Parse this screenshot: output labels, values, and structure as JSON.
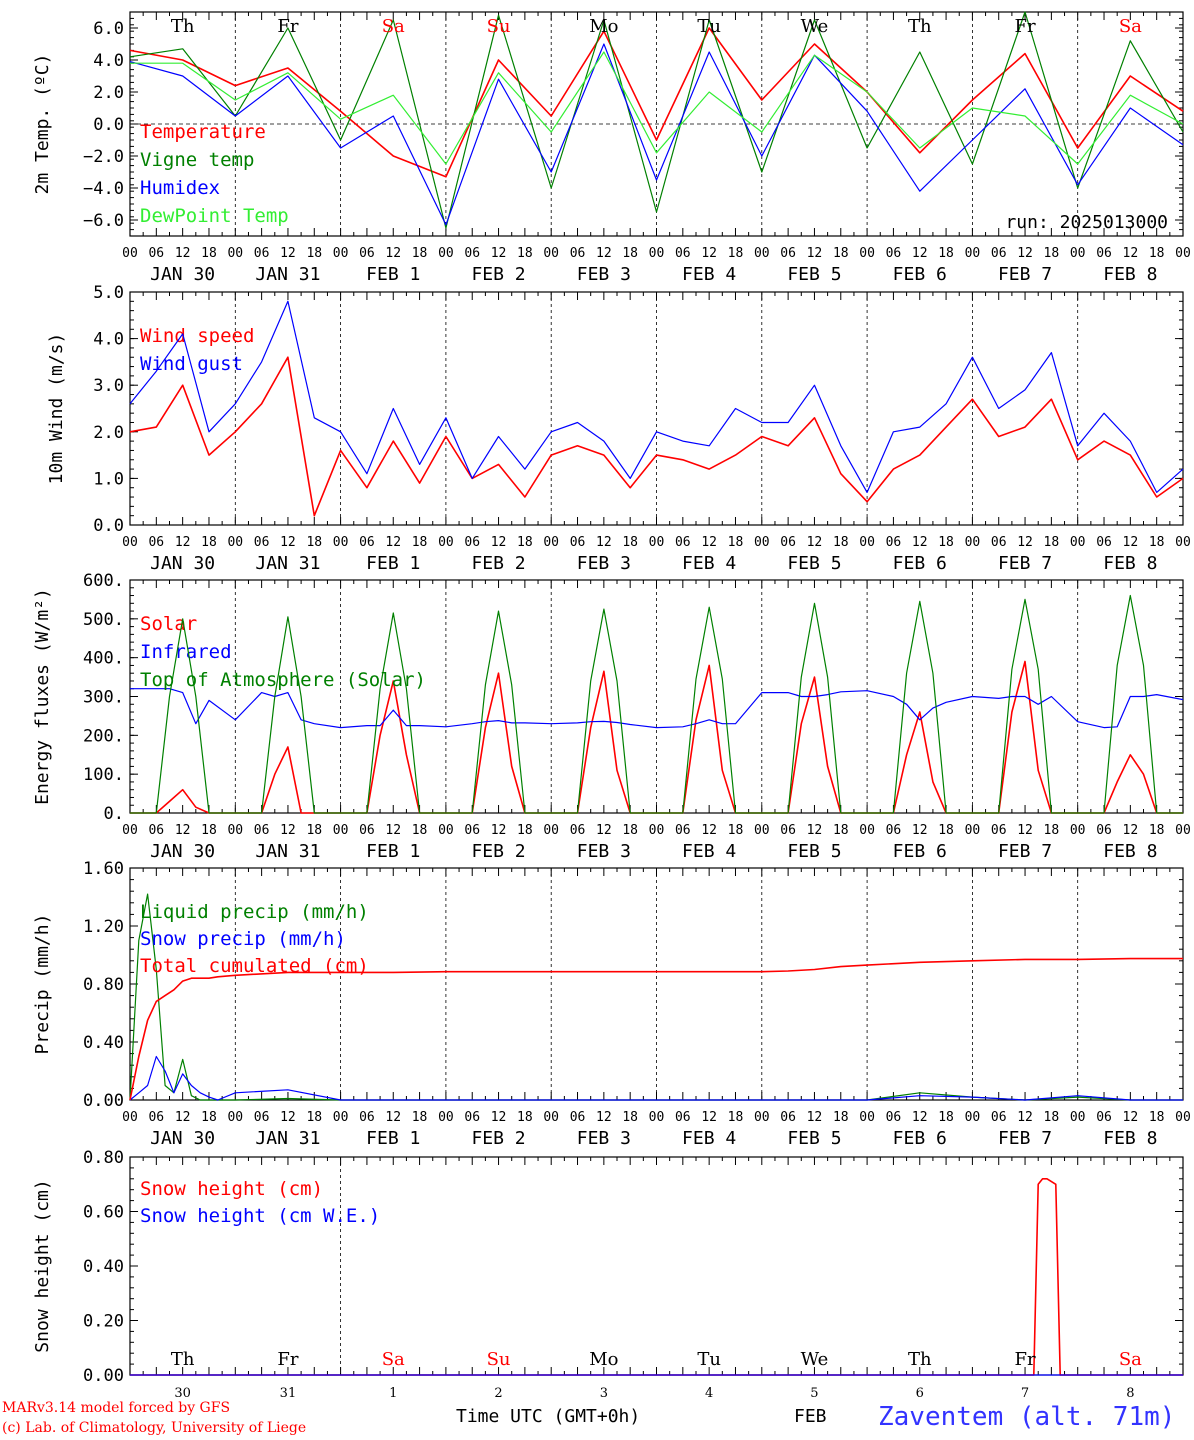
{
  "colors": {
    "red": "#ff0000",
    "green": "#008000",
    "blue": "#0000ff",
    "lightgreen": "#33ee33",
    "black": "#000000"
  },
  "x_axis": {
    "hour_ticks": [
      "00",
      "06",
      "12",
      "18"
    ],
    "end_tick": "00",
    "dates": [
      "JAN 30",
      "JAN 31",
      "FEB  1",
      "FEB  2",
      "FEB  3",
      "FEB  4",
      "FEB  5",
      "FEB  6",
      "FEB  7",
      "FEB  8"
    ],
    "weekdays": [
      "Th",
      "Fr",
      "Sa",
      "Su",
      "Mo",
      "Tu",
      "We",
      "Th",
      "Fr",
      "Sa"
    ],
    "weekday_colors": [
      "black",
      "black",
      "red",
      "red",
      "black",
      "black",
      "black",
      "black",
      "black",
      "red"
    ],
    "bottom_days": [
      "30",
      "31",
      "1",
      "2",
      "3",
      "4",
      "5",
      "6",
      "7",
      "8"
    ],
    "label": "Time UTC (GMT+0h)",
    "month_label": "FEB"
  },
  "footer": {
    "model": "MARv3.14 model forced by GFS",
    "credit": "(c) Lab. of Climatology, University of Liege",
    "station": "Zaventem (alt. 71m)"
  },
  "chart_data": [
    {
      "type": "line",
      "ylabel": "2m Temp. (ºC)",
      "ylim": [
        -7,
        7
      ],
      "yticks": [
        6,
        4,
        2,
        0,
        -2,
        -4,
        -6
      ],
      "ytick_labels": [
        "6.0",
        "4.0",
        "2.0",
        "0.0",
        "−2.0",
        "−4.0",
        "−6.0"
      ],
      "zero_line": true,
      "annotation": "run: 2025013000",
      "x_hours": [
        0,
        12,
        24,
        36,
        48,
        60,
        72,
        84,
        96,
        108,
        120,
        132,
        144,
        156,
        168,
        180,
        192,
        204,
        216,
        228,
        240
      ],
      "series": [
        {
          "name": "Temperature",
          "color": "red",
          "values": [
            4.6,
            4.0,
            2.4,
            3.5,
            0.8,
            -2.0,
            -3.3,
            4.0,
            0.5,
            5.8,
            -1.0,
            6.0,
            1.5,
            5.0,
            2.0,
            -1.8,
            1.5,
            4.4,
            -1.5,
            3.0,
            0.8
          ]
        },
        {
          "name": "Vigne temp",
          "color": "green",
          "values": [
            4.2,
            4.7,
            0.5,
            6.0,
            -1.0,
            6.5,
            -6.5,
            6.8,
            -4.0,
            6.5,
            -5.5,
            6.5,
            -3.0,
            6.5,
            -1.5,
            4.5,
            -2.5,
            7.0,
            -4.0,
            5.2,
            -0.5
          ]
        },
        {
          "name": "Humidex",
          "color": "blue",
          "values": [
            3.9,
            3.0,
            0.5,
            3.0,
            -1.5,
            0.5,
            -6.3,
            2.8,
            -3.0,
            5.0,
            -3.5,
            4.5,
            -2.0,
            4.3,
            0.8,
            -4.2,
            -1.0,
            2.2,
            -3.8,
            1.0,
            -1.3
          ]
        },
        {
          "name": "DewPoint Temp",
          "color": "lightgreen",
          "values": [
            3.8,
            3.8,
            1.5,
            3.2,
            0.3,
            1.8,
            -2.5,
            3.2,
            -0.5,
            4.5,
            -1.8,
            2.0,
            -0.5,
            4.3,
            2.0,
            -1.5,
            1.0,
            0.5,
            -2.5,
            1.8,
            0.0
          ]
        }
      ]
    },
    {
      "type": "line",
      "ylabel": "10m Wind (m/s)",
      "ylim": [
        0,
        5
      ],
      "yticks": [
        5,
        4,
        3,
        2,
        1,
        0
      ],
      "ytick_labels": [
        "5.0",
        "4.0",
        "3.0",
        "2.0",
        "1.0",
        "0.0"
      ],
      "x_hours": [
        0,
        6,
        12,
        18,
        24,
        30,
        36,
        42,
        48,
        54,
        60,
        66,
        72,
        78,
        84,
        90,
        96,
        102,
        108,
        114,
        120,
        126,
        132,
        138,
        144,
        150,
        156,
        162,
        168,
        174,
        180,
        186,
        192,
        198,
        204,
        210,
        216,
        222,
        228,
        234,
        240
      ],
      "series": [
        {
          "name": "Wind speed",
          "color": "red",
          "values": [
            2.0,
            2.1,
            3.0,
            1.5,
            2.0,
            2.6,
            3.6,
            0.2,
            1.6,
            0.8,
            1.8,
            0.9,
            1.9,
            1.0,
            1.3,
            0.6,
            1.5,
            1.7,
            1.5,
            0.8,
            1.5,
            1.4,
            1.2,
            1.5,
            1.9,
            1.7,
            2.3,
            1.1,
            0.5,
            1.2,
            1.5,
            2.1,
            2.7,
            1.9,
            2.1,
            2.7,
            1.4,
            1.8,
            1.5,
            0.6,
            1.0
          ]
        },
        {
          "name": "Wind gust",
          "color": "blue",
          "values": [
            2.6,
            3.3,
            4.1,
            2.0,
            2.6,
            3.5,
            4.8,
            2.3,
            2.0,
            1.1,
            2.5,
            1.3,
            2.3,
            1.0,
            1.9,
            1.2,
            2.0,
            2.2,
            1.8,
            1.0,
            2.0,
            1.8,
            1.7,
            2.5,
            2.2,
            2.2,
            3.0,
            1.7,
            0.7,
            2.0,
            2.1,
            2.6,
            3.6,
            2.5,
            2.9,
            3.7,
            1.7,
            2.4,
            1.8,
            0.7,
            1.2
          ]
        }
      ]
    },
    {
      "type": "line",
      "ylabel": "Energy fluxes (W/m²)",
      "ylim": [
        0,
        600
      ],
      "yticks": [
        600,
        500,
        400,
        300,
        200,
        100,
        0
      ],
      "ytick_labels": [
        "600.",
        "500.",
        "400.",
        "300.",
        "200.",
        "100.",
        "0."
      ],
      "x_hours": [
        0,
        6,
        9,
        12,
        15,
        18,
        24,
        30,
        33,
        36,
        39,
        42,
        48,
        54,
        57,
        60,
        63,
        66,
        72,
        78,
        81,
        84,
        87,
        90,
        96,
        102,
        105,
        108,
        111,
        114,
        120,
        126,
        129,
        132,
        135,
        138,
        144,
        150,
        153,
        156,
        159,
        162,
        168,
        174,
        177,
        180,
        183,
        186,
        192,
        198,
        201,
        204,
        207,
        210,
        216,
        222,
        225,
        228,
        231,
        234,
        240
      ],
      "series": [
        {
          "name": "Solar",
          "color": "red",
          "values": [
            0,
            0,
            30,
            60,
            15,
            0,
            0,
            0,
            100,
            170,
            0,
            0,
            0,
            0,
            200,
            340,
            150,
            0,
            0,
            0,
            220,
            360,
            120,
            0,
            0,
            0,
            220,
            365,
            110,
            0,
            0,
            0,
            240,
            380,
            110,
            0,
            0,
            0,
            230,
            350,
            120,
            0,
            0,
            0,
            150,
            260,
            80,
            0,
            0,
            0,
            260,
            390,
            110,
            0,
            0,
            0,
            80,
            150,
            100,
            0,
            0
          ]
        },
        {
          "name": "Infrared",
          "color": "blue",
          "values": [
            320,
            320,
            320,
            310,
            230,
            290,
            240,
            310,
            300,
            310,
            240,
            230,
            220,
            225,
            225,
            265,
            225,
            225,
            222,
            230,
            235,
            238,
            232,
            232,
            230,
            232,
            235,
            236,
            233,
            228,
            220,
            222,
            230,
            240,
            230,
            230,
            310,
            310,
            300,
            300,
            305,
            312,
            315,
            300,
            280,
            240,
            270,
            285,
            300,
            295,
            300,
            300,
            280,
            300,
            235,
            220,
            222,
            300,
            300,
            305,
            292
          ]
        },
        {
          "name": "Top of Atmosphere (Solar)",
          "color": "green",
          "values": [
            0,
            0,
            300,
            500,
            300,
            0,
            0,
            0,
            300,
            505,
            300,
            0,
            0,
            0,
            320,
            515,
            320,
            0,
            0,
            0,
            330,
            520,
            330,
            0,
            0,
            0,
            340,
            525,
            340,
            0,
            0,
            0,
            345,
            530,
            345,
            0,
            0,
            0,
            350,
            540,
            350,
            0,
            0,
            0,
            360,
            545,
            360,
            0,
            0,
            0,
            370,
            550,
            370,
            0,
            0,
            0,
            380,
            560,
            380,
            0,
            0
          ]
        }
      ]
    },
    {
      "type": "line",
      "ylabel": "Precip (mm/h)",
      "ylim": [
        0,
        1.6
      ],
      "yticks": [
        1.6,
        1.2,
        0.8,
        0.4,
        0
      ],
      "ytick_labels": [
        "1.60",
        "1.20",
        "0.80",
        "0.40",
        "0.00"
      ],
      "x_hours": [
        0,
        2,
        4,
        6,
        8,
        10,
        12,
        14,
        16,
        18,
        20,
        24,
        36,
        48,
        60,
        72,
        84,
        96,
        108,
        120,
        132,
        144,
        150,
        156,
        162,
        168,
        180,
        192,
        204,
        216,
        228,
        240
      ],
      "series": [
        {
          "name": "Liquid precip (mm/h)",
          "color": "green",
          "values": [
            0.0,
            1.1,
            1.42,
            0.9,
            0.1,
            0.05,
            0.28,
            0.03,
            0.0,
            0.0,
            0.0,
            0.0,
            0.01,
            0.0,
            0.0,
            0.0,
            0.0,
            0.0,
            0.0,
            0.0,
            0.0,
            0.0,
            0.0,
            0.0,
            0.0,
            0.0,
            0.05,
            0.02,
            0.0,
            0.02,
            0.0,
            0.0
          ]
        },
        {
          "name": "Snow precip (mm/h)",
          "color": "blue",
          "values": [
            0.0,
            0.05,
            0.1,
            0.3,
            0.2,
            0.05,
            0.18,
            0.1,
            0.05,
            0.02,
            0.0,
            0.05,
            0.07,
            0.0,
            0.0,
            0.0,
            0.0,
            0.0,
            0.0,
            0.0,
            0.0,
            0.0,
            0.0,
            0.0,
            0.0,
            0.0,
            0.03,
            0.02,
            0.0,
            0.03,
            0.0,
            0.0
          ]
        },
        {
          "name": "Total cumulated (cm)",
          "color": "red",
          "values": [
            0.0,
            0.3,
            0.55,
            0.68,
            0.72,
            0.76,
            0.82,
            0.84,
            0.84,
            0.84,
            0.85,
            0.86,
            0.88,
            0.88,
            0.88,
            0.885,
            0.885,
            0.885,
            0.885,
            0.885,
            0.885,
            0.885,
            0.89,
            0.9,
            0.92,
            0.93,
            0.95,
            0.96,
            0.97,
            0.97,
            0.975,
            0.975
          ]
        }
      ]
    },
    {
      "type": "line",
      "ylabel": "Snow height (cm)",
      "ylim": [
        0,
        0.8
      ],
      "yticks": [
        0.8,
        0.6,
        0.4,
        0.2,
        0
      ],
      "ytick_labels": [
        "0.80",
        "0.60",
        "0.40",
        "0.20",
        "0.00"
      ],
      "x_hours": [
        0,
        100,
        200,
        206,
        207,
        208,
        209,
        211,
        212,
        240
      ],
      "series": [
        {
          "name": "Snow height (cm)",
          "color": "red",
          "values": [
            0,
            0,
            0,
            0,
            0.7,
            0.72,
            0.72,
            0.7,
            0,
            0
          ]
        },
        {
          "name": "Snow height (cm W.E.)",
          "color": "blue",
          "values": [
            0,
            0,
            0,
            0,
            0,
            0,
            0,
            0,
            0,
            0
          ]
        }
      ]
    }
  ]
}
